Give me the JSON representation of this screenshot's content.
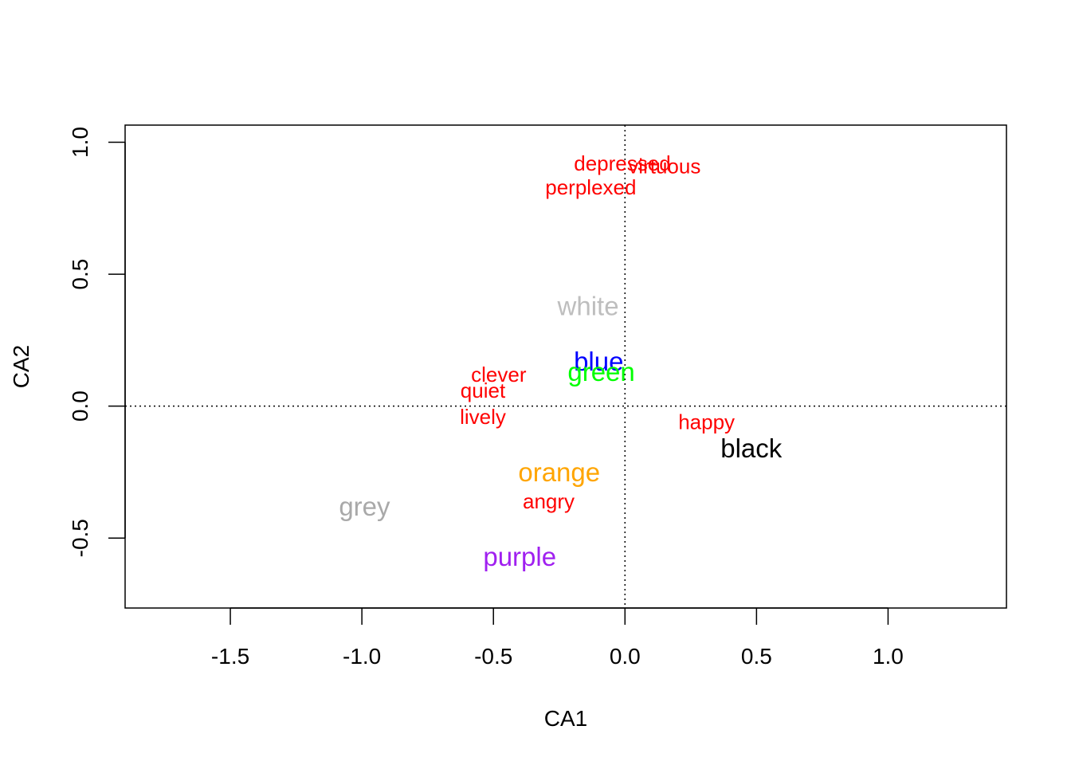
{
  "chart_data": {
    "type": "scatter",
    "title": "",
    "xlabel": "CA1",
    "ylabel": "CA2",
    "xlim": [
      -1.9,
      1.45
    ],
    "ylim": [
      -0.765,
      1.065
    ],
    "grid": false,
    "reference_lines": [
      {
        "axis": "x",
        "value": 0,
        "style": "dotted"
      },
      {
        "axis": "y",
        "value": 0,
        "style": "dotted"
      }
    ],
    "x_ticks": [
      {
        "value": -1.5,
        "label": "-1.5"
      },
      {
        "value": -1.0,
        "label": "-1.0"
      },
      {
        "value": -0.5,
        "label": "-0.5"
      },
      {
        "value": 0.0,
        "label": "0.0"
      },
      {
        "value": 0.5,
        "label": "0.5"
      },
      {
        "value": 1.0,
        "label": "1.0"
      }
    ],
    "y_ticks": [
      {
        "value": -0.5,
        "label": "-0.5"
      },
      {
        "value": 0.0,
        "label": "0.0"
      },
      {
        "value": 0.5,
        "label": "0.5"
      },
      {
        "value": 1.0,
        "label": "1.0"
      }
    ],
    "series": [
      {
        "points": [
          {
            "label": "depressed",
            "x": -0.01,
            "y": 0.92,
            "color": "#ff0000"
          },
          {
            "label": "virtuous",
            "x": 0.15,
            "y": 0.91,
            "color": "#ff0000"
          },
          {
            "label": "perplexed",
            "x": -0.13,
            "y": 0.83,
            "color": "#ff0000"
          },
          {
            "label": "clever",
            "x": -0.48,
            "y": 0.12,
            "color": "#ff0000"
          },
          {
            "label": "quiet",
            "x": -0.54,
            "y": 0.06,
            "color": "#ff0000"
          },
          {
            "label": "lively",
            "x": -0.54,
            "y": -0.04,
            "color": "#ff0000"
          },
          {
            "label": "happy",
            "x": 0.31,
            "y": -0.06,
            "color": "#ff0000"
          },
          {
            "label": "angry",
            "x": -0.29,
            "y": -0.36,
            "color": "#ff0000"
          }
        ]
      },
      {
        "points": [
          {
            "label": "white",
            "x": -0.14,
            "y": 0.38,
            "color": "#bebebe"
          },
          {
            "label": "blue",
            "x": -0.1,
            "y": 0.17,
            "color": "#0000ff"
          },
          {
            "label": "green",
            "x": -0.09,
            "y": 0.13,
            "color": "#00ff00"
          },
          {
            "label": "black",
            "x": 0.48,
            "y": -0.16,
            "color": "#000000"
          },
          {
            "label": "orange",
            "x": -0.25,
            "y": -0.25,
            "color": "#ffa500"
          },
          {
            "label": "grey",
            "x": -0.99,
            "y": -0.38,
            "color": "#a9a9a9"
          },
          {
            "label": "purple",
            "x": -0.4,
            "y": -0.57,
            "color": "#a020f0"
          }
        ]
      }
    ]
  }
}
